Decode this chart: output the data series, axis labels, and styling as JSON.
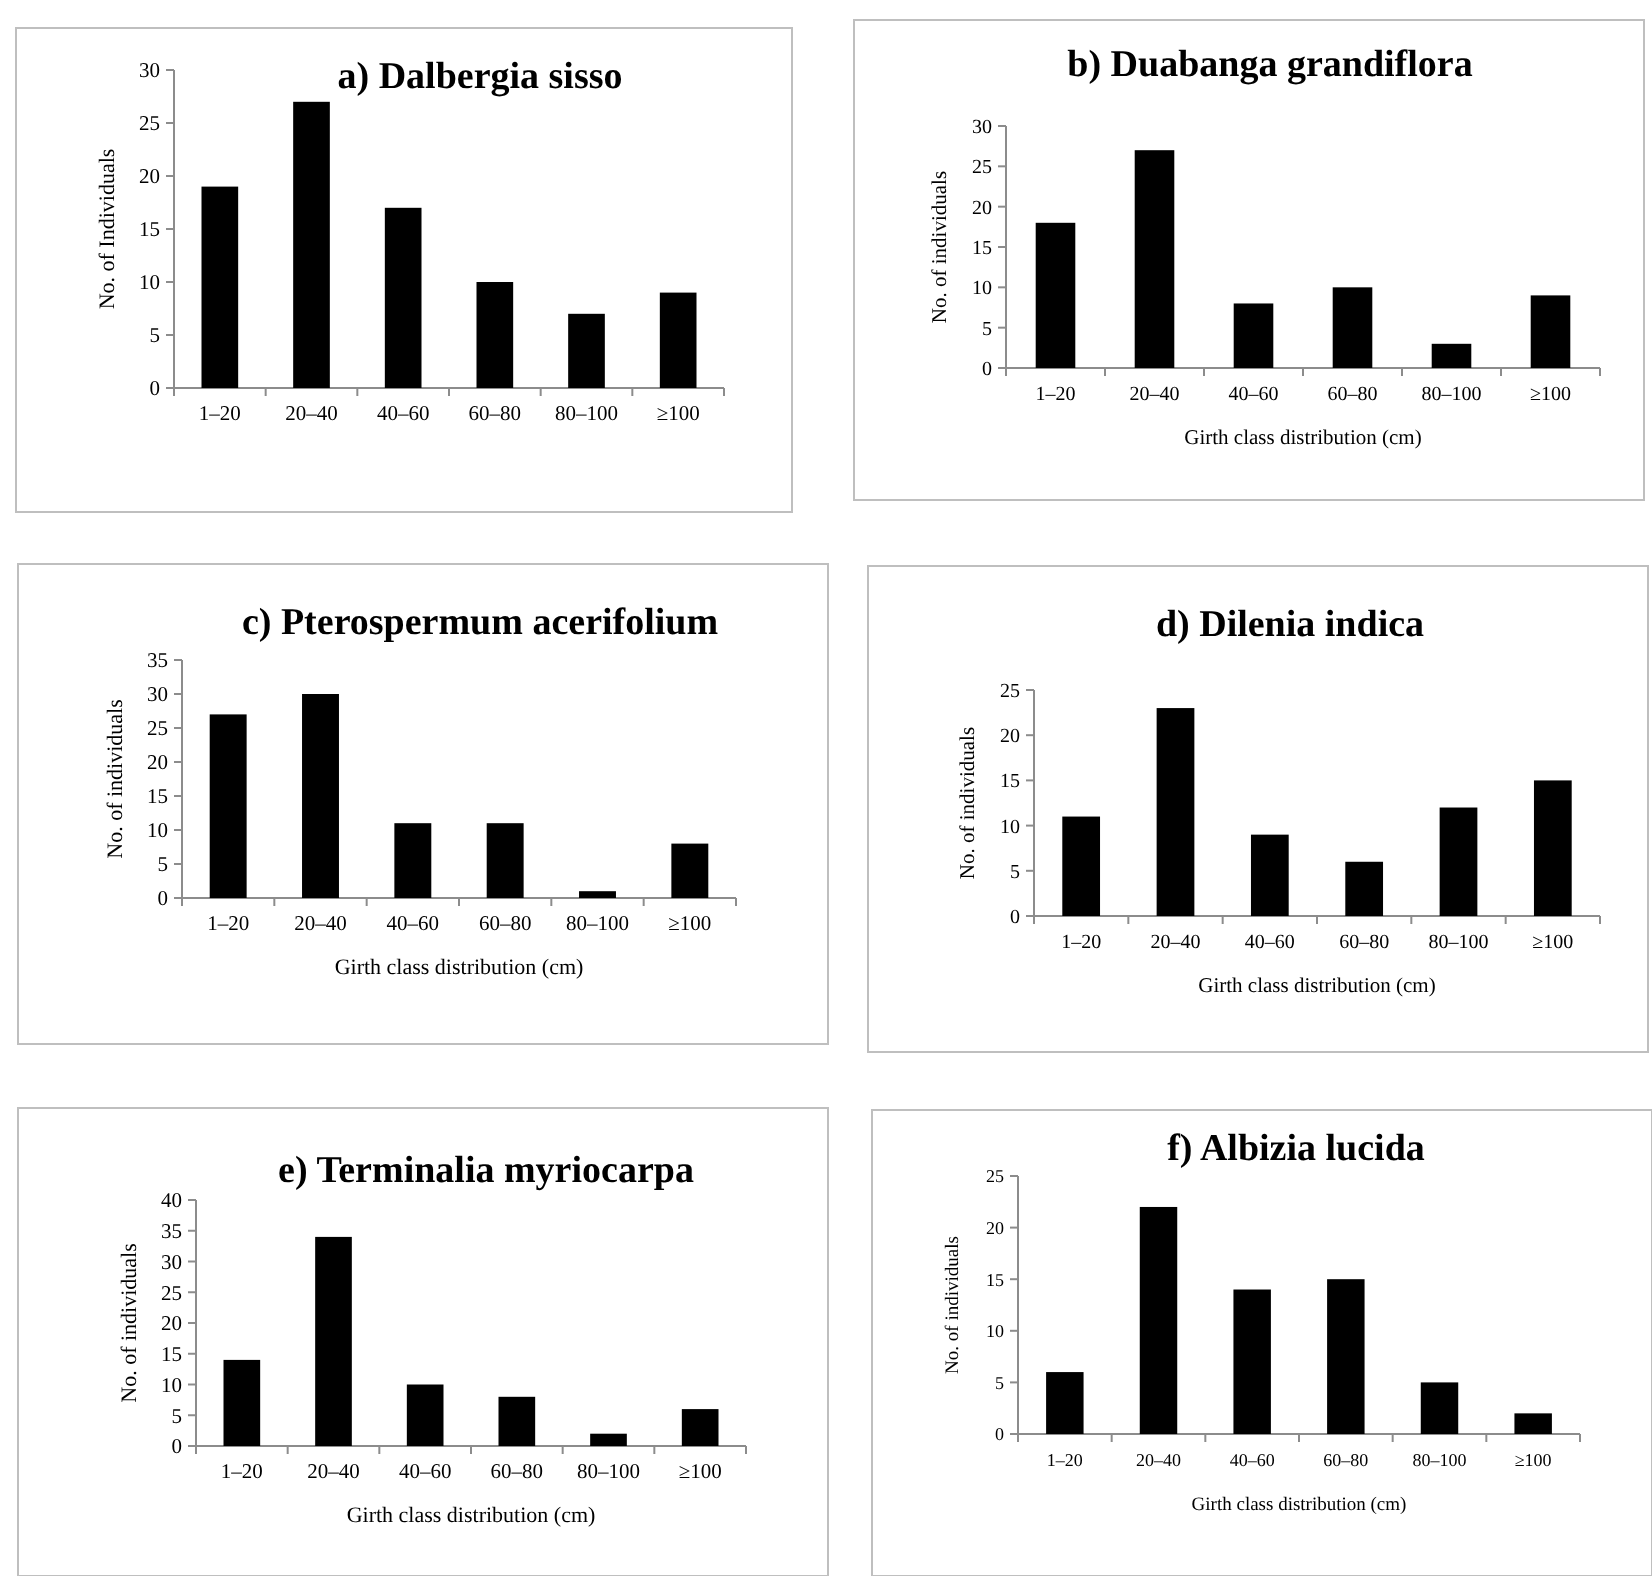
{
  "chart_data": [
    {
      "type": "bar",
      "title": "a) Dalbergia sisso",
      "ylabel": "No. of Individuals",
      "categories": [
        "1–20",
        "20–40",
        "40–60",
        "60–80",
        "80–100",
        "≥100"
      ],
      "values": [
        19,
        27,
        17,
        10,
        7,
        9
      ],
      "color": "#000000",
      "ylim": [
        0,
        30
      ],
      "yticks": [
        0,
        5,
        10,
        15,
        20,
        25,
        30
      ]
    },
    {
      "type": "bar",
      "title": "b) Duabanga grandiflora",
      "xlabel": "Girth class distribution (cm)",
      "ylabel": "No. of individuals",
      "categories": [
        "1–20",
        "20–40",
        "40–60",
        "60–80",
        "80–100",
        "≥100"
      ],
      "values": [
        18,
        27,
        8,
        10,
        3,
        9
      ],
      "color": "#000000",
      "ylim": [
        0,
        30
      ],
      "yticks": [
        0,
        5,
        10,
        15,
        20,
        25,
        30
      ]
    },
    {
      "type": "bar",
      "title": "c) Pterospermum acerifolium",
      "xlabel": "Girth class distribution (cm)",
      "ylabel": "No. of individuals",
      "categories": [
        "1–20",
        "20–40",
        "40–60",
        "60–80",
        "80–100",
        "≥100"
      ],
      "values": [
        27,
        30,
        11,
        11,
        1,
        8
      ],
      "color": "#000000",
      "ylim": [
        0,
        35
      ],
      "yticks": [
        0,
        5,
        10,
        15,
        20,
        25,
        30,
        35
      ]
    },
    {
      "type": "bar",
      "title": "d) Dilenia indica",
      "xlabel": "Girth class distribution (cm)",
      "ylabel": "No. of individuals",
      "categories": [
        "1–20",
        "20–40",
        "40–60",
        "60–80",
        "80–100",
        "≥100"
      ],
      "values": [
        11,
        23,
        9,
        6,
        12,
        15
      ],
      "color": "#000000",
      "ylim": [
        0,
        25
      ],
      "yticks": [
        0,
        5,
        10,
        15,
        20,
        25
      ]
    },
    {
      "type": "bar",
      "title": "e) Terminalia myriocarpa",
      "xlabel": "Girth class distribution (cm)",
      "ylabel": "No. of individuals",
      "categories": [
        "1–20",
        "20–40",
        "40–60",
        "60–80",
        "80–100",
        "≥100"
      ],
      "values": [
        14,
        34,
        10,
        8,
        2,
        6
      ],
      "color": "#000000",
      "ylim": [
        0,
        40
      ],
      "yticks": [
        0,
        5,
        10,
        15,
        20,
        25,
        30,
        35,
        40
      ]
    },
    {
      "type": "bar",
      "title": "f) Albizia lucida",
      "xlabel": "Girth class distribution (cm)",
      "ylabel": "No. of individuals",
      "categories": [
        "1–20",
        "20–40",
        "40–60",
        "60–80",
        "80–100",
        "≥100"
      ],
      "values": [
        6,
        22,
        14,
        15,
        5,
        2
      ],
      "color": "#000000",
      "ylim": [
        0,
        25
      ],
      "yticks": [
        0,
        5,
        10,
        15,
        20,
        25
      ]
    }
  ]
}
